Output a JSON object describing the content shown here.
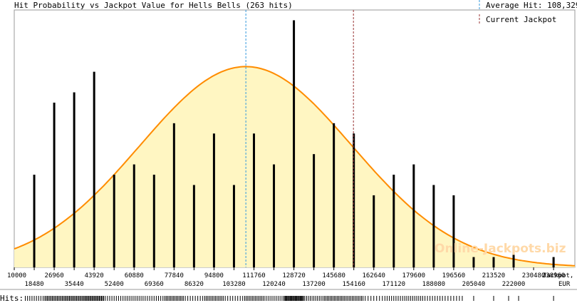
{
  "chart_data": {
    "type": "bar",
    "title": "Hit Probability vs Jackpot Value for Hells Bells (263 hits)",
    "legend": {
      "average_label": "Average Hit: 108,329",
      "current_label": "Current Jackpot",
      "position": "top-right"
    },
    "average_hit": 108329,
    "current_jackpot": 154000,
    "xlabel_line1": "Jackpot,",
    "xlabel_line2": "EUR",
    "xlim": [
      10000,
      248000
    ],
    "ylim": [
      0,
      25
    ],
    "ticks_top": [
      "10000",
      "26960",
      "43920",
      "60880",
      "77840",
      "94800",
      "111760",
      "128720",
      "145680",
      "162640",
      "179600",
      "196560",
      "213520",
      "230480",
      "238960"
    ],
    "ticks_top_values": [
      10000,
      26960,
      43920,
      60880,
      77840,
      94800,
      111760,
      128720,
      145680,
      162640,
      179600,
      196560,
      213520,
      230480,
      238960
    ],
    "ticks_bottom": [
      "18480",
      "35440",
      "52400",
      "69360",
      "86320",
      "103280",
      "120240",
      "137200",
      "154160",
      "171120",
      "188080",
      "205040",
      "222000"
    ],
    "ticks_bottom_values": [
      18480,
      35440,
      52400,
      69360,
      86320,
      103280,
      120240,
      137200,
      154160,
      171120,
      188080,
      205040,
      222000
    ],
    "bars": [
      {
        "x": 18480,
        "y": 9
      },
      {
        "x": 26960,
        "y": 16
      },
      {
        "x": 35440,
        "y": 17
      },
      {
        "x": 43920,
        "y": 19
      },
      {
        "x": 52400,
        "y": 9
      },
      {
        "x": 60880,
        "y": 10
      },
      {
        "x": 69360,
        "y": 9
      },
      {
        "x": 77840,
        "y": 14
      },
      {
        "x": 86320,
        "y": 8
      },
      {
        "x": 94800,
        "y": 13
      },
      {
        "x": 103280,
        "y": 8
      },
      {
        "x": 111760,
        "y": 13
      },
      {
        "x": 120240,
        "y": 10
      },
      {
        "x": 128720,
        "y": 24
      },
      {
        "x": 137200,
        "y": 11
      },
      {
        "x": 145680,
        "y": 14
      },
      {
        "x": 154160,
        "y": 13
      },
      {
        "x": 162640,
        "y": 7
      },
      {
        "x": 171120,
        "y": 9
      },
      {
        "x": 179600,
        "y": 10
      },
      {
        "x": 188080,
        "y": 8
      },
      {
        "x": 196560,
        "y": 7
      },
      {
        "x": 205040,
        "y": 1
      },
      {
        "x": 213520,
        "y": 1
      },
      {
        "x": 222000,
        "y": 2
      },
      {
        "x": 238960,
        "y": 1
      }
    ],
    "curve": {
      "mean": 108329,
      "sd": 45000,
      "peak": 19.5
    },
    "colors": {
      "bars": "#000000",
      "curve": "#ff8c00",
      "fill": "#fff6c2",
      "average_line": "#3399dd",
      "current_line": "#993333"
    },
    "hits_label": "Hits:",
    "watermark": "Online-Jackpots.biz"
  }
}
